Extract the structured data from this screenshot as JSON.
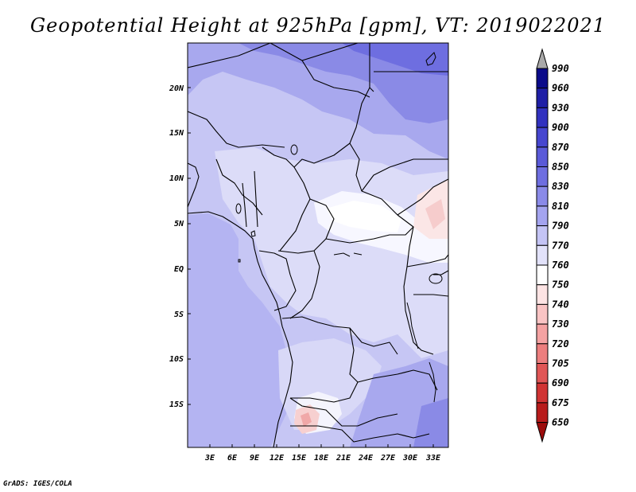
{
  "title": "Geopotential Height at 925hPa [gpm], VT: 2019022021",
  "credit": "GrADS: IGES/COLA",
  "map": {
    "lon_range": [
      0,
      35
    ],
    "lat_range": [
      -20,
      25
    ],
    "lat_labels": [
      "20N",
      "15N",
      "10N",
      "5N",
      "EQ",
      "5S",
      "10S",
      "15S"
    ],
    "lon_labels": [
      "3E",
      "6E",
      "9E",
      "12E",
      "15E",
      "18E",
      "21E",
      "24E",
      "27E",
      "30E",
      "33E"
    ]
  },
  "legend": {
    "levels": [
      "990",
      "960",
      "930",
      "900",
      "870",
      "850",
      "830",
      "810",
      "790",
      "770",
      "760",
      "750",
      "740",
      "730",
      "720",
      "705",
      "690",
      "675",
      "650"
    ],
    "colors": [
      "#0b0b8a",
      "#1f1fa6",
      "#3232bf",
      "#4646cf",
      "#5a5ad8",
      "#6e6ee0",
      "#8a8ae8",
      "#a4a4ef",
      "#c4c4f5",
      "#e2e2fa",
      "#ffffff",
      "#fde4e4",
      "#f9c4c4",
      "#f4a2a2",
      "#ec7e7e",
      "#e05656",
      "#d03434",
      "#b81c1c",
      "#9c0c0c"
    ]
  }
}
